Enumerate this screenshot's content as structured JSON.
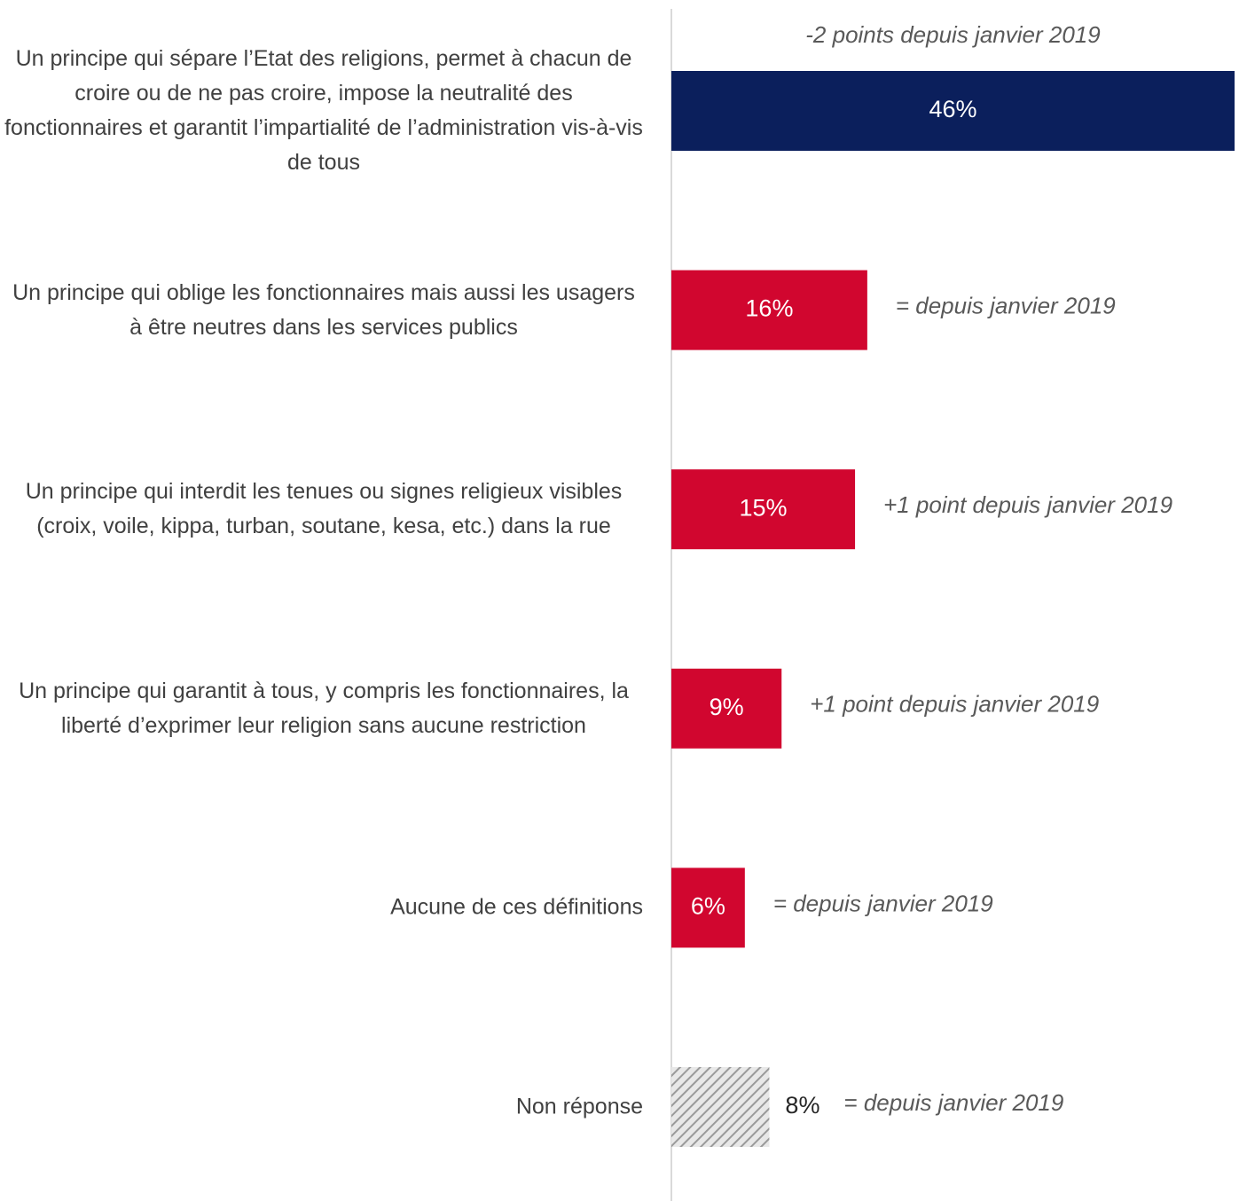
{
  "chart_data": {
    "type": "bar",
    "orientation": "horizontal",
    "categories": [
      "Un principe qui sépare l’Etat des religions, permet à chacun de croire ou de ne pas croire, impose la neutralité des fonctionnaires et garantit l’impartialité de l’administration vis-à-vis de tous",
      "Un principe qui oblige les fonctionnaires mais aussi les usagers à être neutres dans les services publics",
      "Un principe qui interdit les tenues ou signes religieux visibles (croix, voile, kippa, turban, soutane, kesa, etc.) dans la rue",
      "Un principe qui garantit à tous, y compris les fonctionnaires, la liberté d’exprimer leur religion sans aucune restriction",
      "Aucune de ces définitions",
      "Non réponse"
    ],
    "values": [
      46,
      16,
      15,
      9,
      6,
      8
    ],
    "value_labels": [
      "46%",
      "16%",
      "15%",
      "9%",
      "6%",
      "8%"
    ],
    "annotations": [
      "-2 points depuis janvier 2019",
      "= depuis janvier 2019",
      "+1 point depuis janvier 2019",
      "+1 point depuis janvier 2019",
      "= depuis janvier 2019",
      "= depuis janvier 2019"
    ],
    "colors": [
      "#0b1f5c",
      "#d1062f",
      "#d1062f",
      "#d1062f",
      "#d1062f",
      "#a6a6a6"
    ],
    "hatch": [
      false,
      false,
      false,
      false,
      false,
      true
    ],
    "xlim": [
      0,
      46
    ]
  }
}
